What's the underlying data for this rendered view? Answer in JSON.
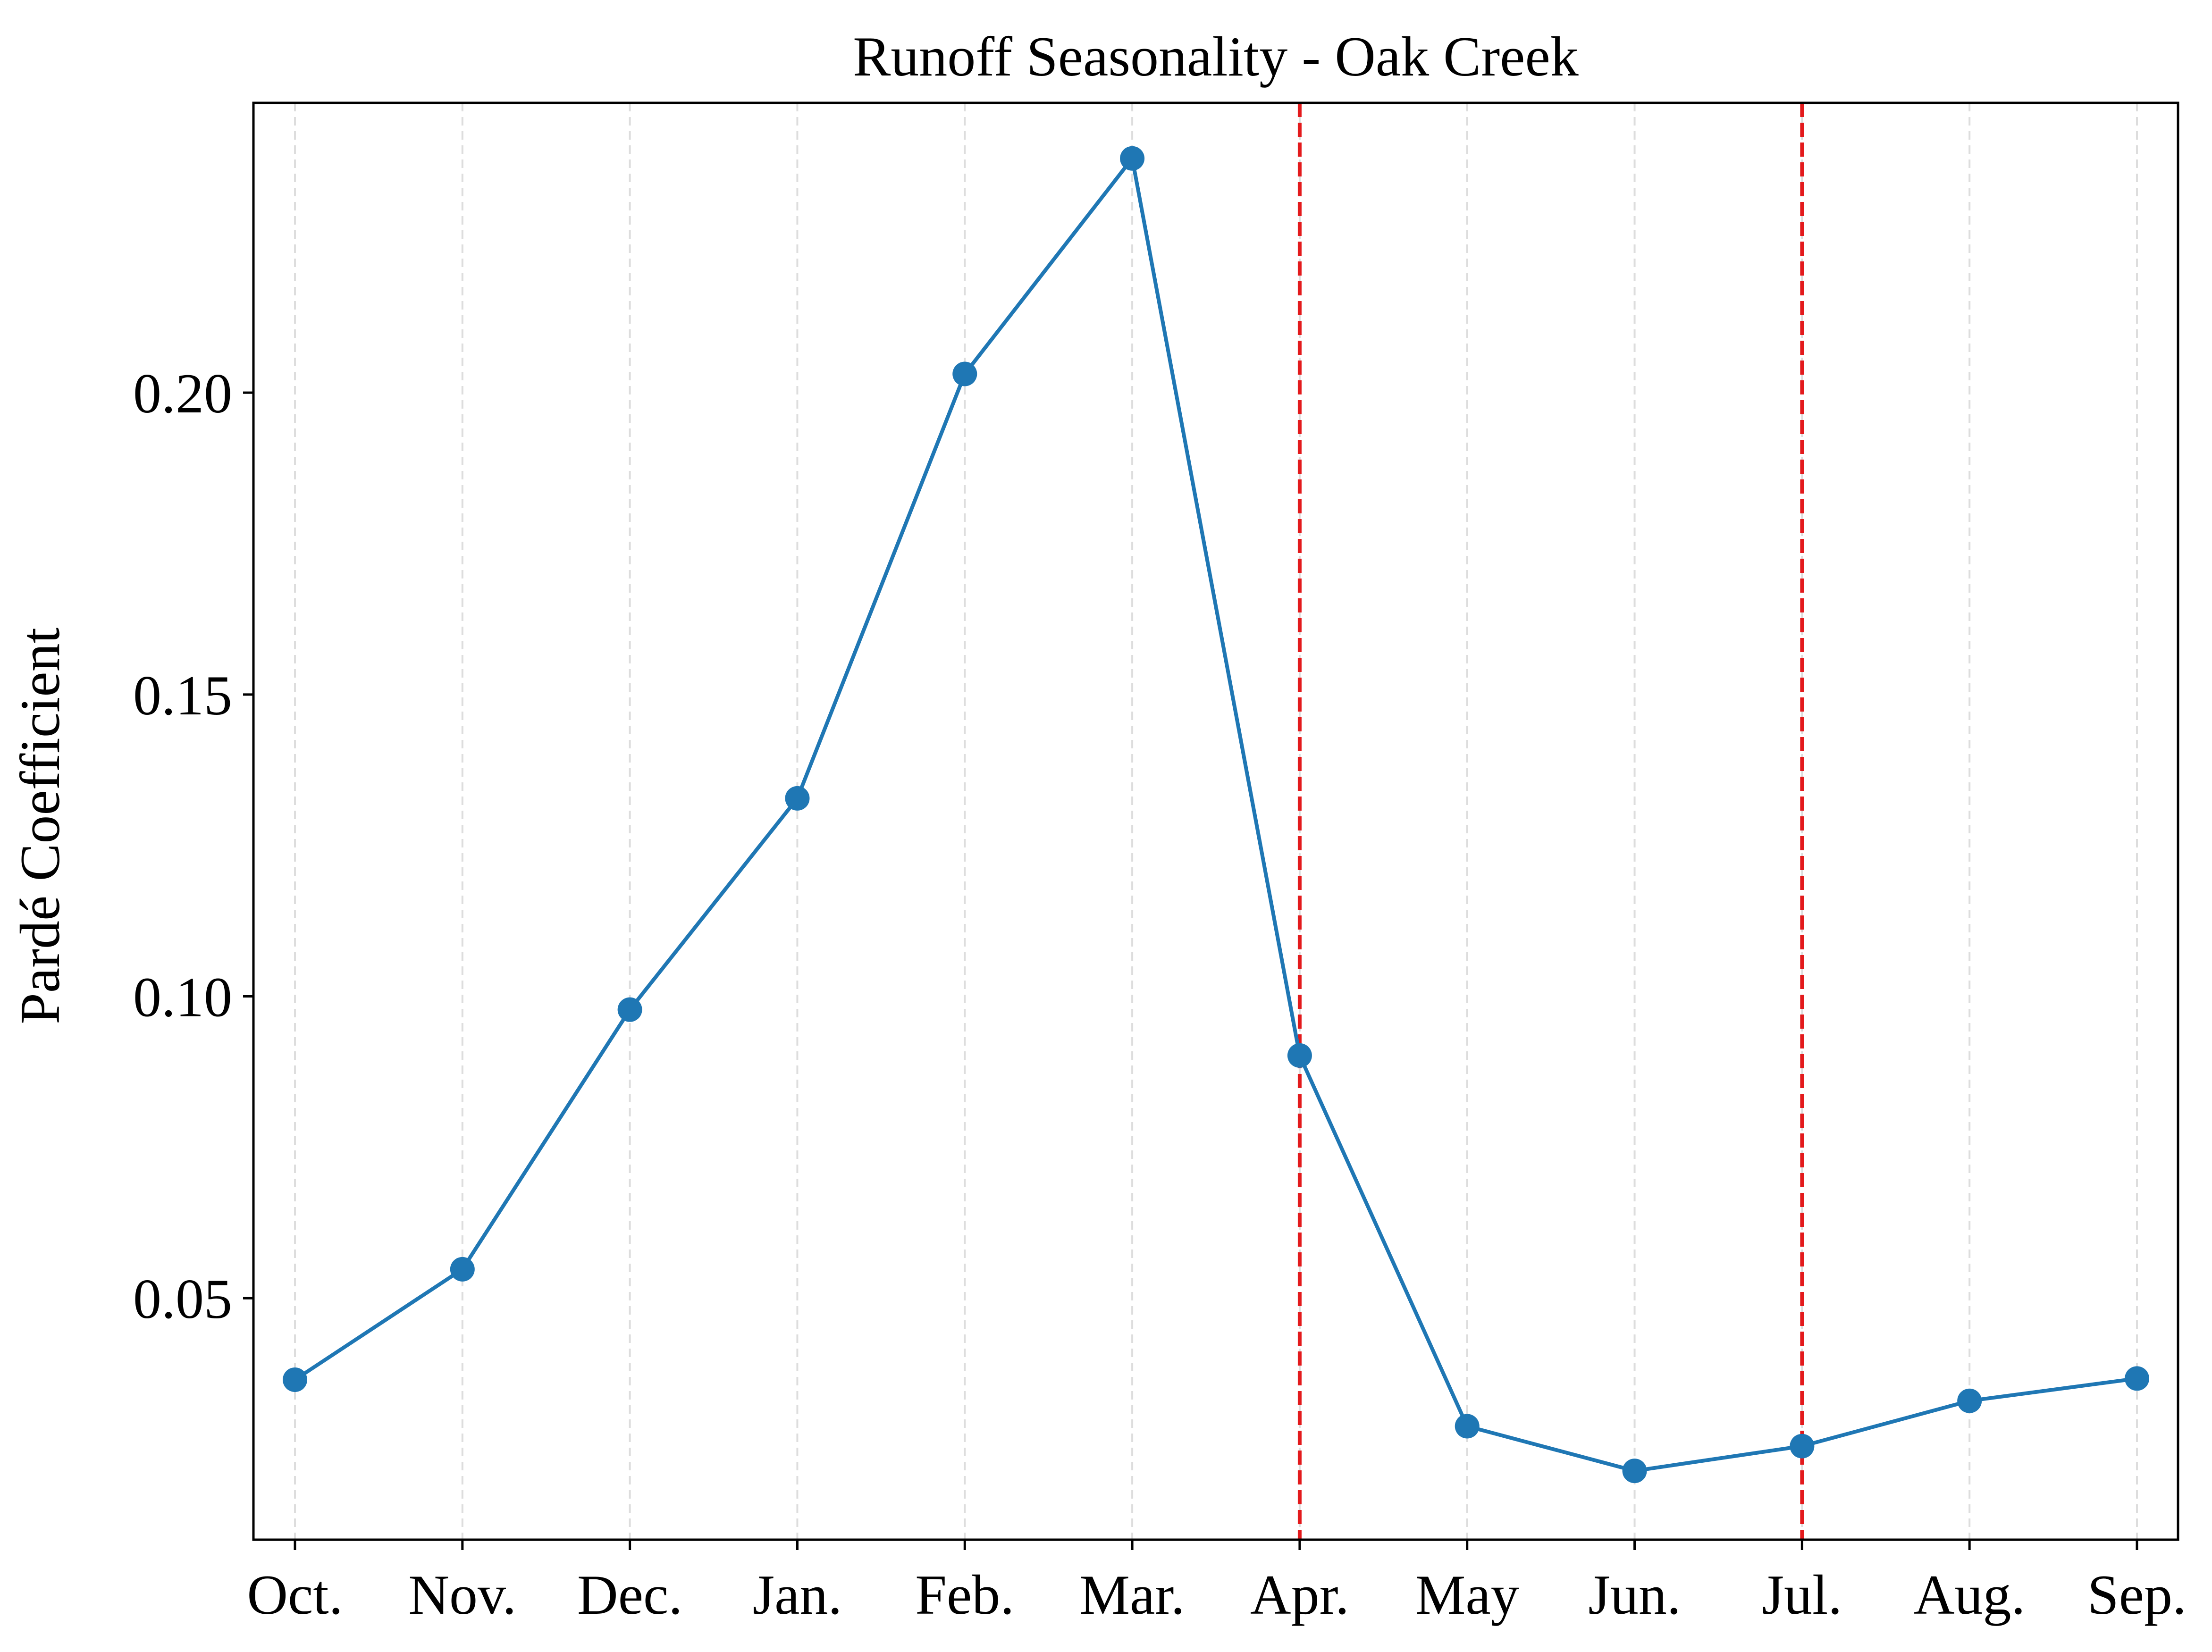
{
  "chart_data": {
    "type": "line",
    "title": "Runoff Seasonality - Oak Creek",
    "xlabel": "",
    "ylabel": "Pardé Coefficient",
    "categories": [
      "Oct.",
      "Nov.",
      "Dec.",
      "Jan.",
      "Feb.",
      "Mar.",
      "Apr.",
      "May",
      "Jun.",
      "Jul.",
      "Aug.",
      "Sep."
    ],
    "series": [
      {
        "values": [
          0.0365,
          0.0548,
          0.0978,
          0.1328,
          0.2031,
          0.2388,
          0.0902,
          0.0288,
          0.0214,
          0.0255,
          0.033,
          0.0367
        ],
        "color": "#1f77b4",
        "marker": "circle"
      }
    ],
    "ylim": [
      0.01,
      0.248
    ],
    "yticks": [
      0.05,
      0.1,
      0.15,
      0.2
    ],
    "ytick_labels": [
      "0.05",
      "0.10",
      "0.15",
      "0.20"
    ],
    "vertical_markers": [
      {
        "category": "Apr.",
        "color": "#e31a1c",
        "style": "dashed"
      },
      {
        "category": "Jul.",
        "color": "#e31a1c",
        "style": "dashed"
      }
    ],
    "grid": {
      "x": true,
      "y": false,
      "style": "dashed",
      "color": "#dddddd"
    },
    "legend": "none"
  }
}
